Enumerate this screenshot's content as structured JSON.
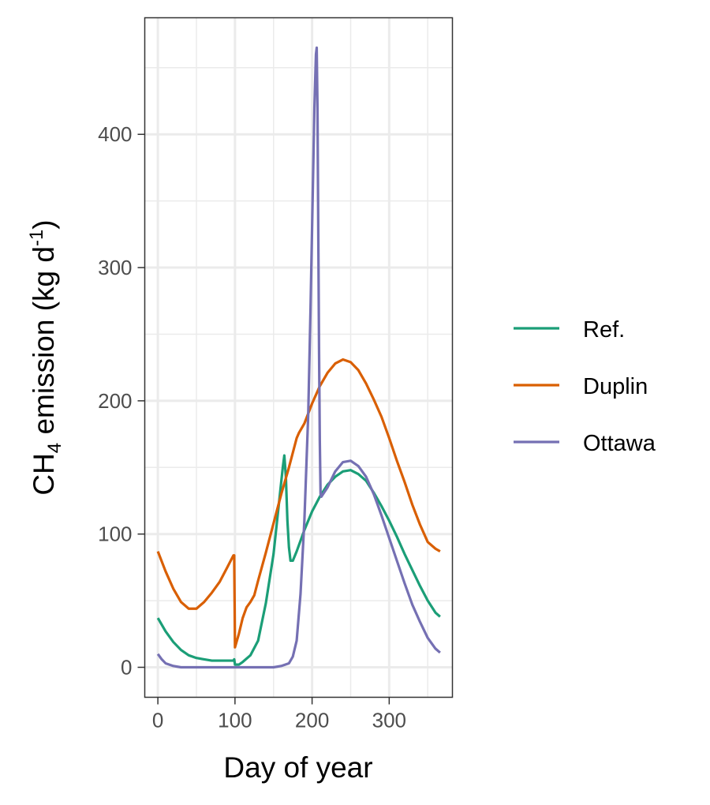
{
  "chart_data": {
    "type": "line",
    "xlabel": "Day of year",
    "ylabel": {
      "prefix": "CH",
      "sub": "4",
      "middle": " emission (kg d",
      "sup": "-1",
      "suffix": ")"
    },
    "xlim": [
      -17,
      382
    ],
    "ylim": [
      -22.5,
      487.5
    ],
    "x_ticks": [
      0,
      100,
      200,
      300
    ],
    "y_ticks": [
      0,
      100,
      200,
      300,
      400
    ],
    "grid": true,
    "legend_position": "right",
    "series": [
      {
        "name": "Ref.",
        "color": "#1b9e77",
        "points": [
          [
            0,
            37
          ],
          [
            10,
            27
          ],
          [
            20,
            19
          ],
          [
            30,
            13
          ],
          [
            40,
            9
          ],
          [
            50,
            7
          ],
          [
            60,
            6
          ],
          [
            70,
            5
          ],
          [
            80,
            5
          ],
          [
            90,
            5
          ],
          [
            98,
            5
          ],
          [
            99,
            6
          ],
          [
            100,
            2
          ],
          [
            105,
            2
          ],
          [
            110,
            4
          ],
          [
            120,
            9
          ],
          [
            130,
            20
          ],
          [
            140,
            48
          ],
          [
            150,
            85
          ],
          [
            157,
            123
          ],
          [
            162,
            150
          ],
          [
            164,
            159
          ],
          [
            166,
            143
          ],
          [
            168,
            110
          ],
          [
            170,
            90
          ],
          [
            172,
            80
          ],
          [
            175,
            80
          ],
          [
            180,
            87
          ],
          [
            190,
            103
          ],
          [
            200,
            117
          ],
          [
            210,
            128
          ],
          [
            220,
            137
          ],
          [
            230,
            143
          ],
          [
            240,
            147
          ],
          [
            250,
            148
          ],
          [
            260,
            145
          ],
          [
            270,
            140
          ],
          [
            280,
            131
          ],
          [
            290,
            121
          ],
          [
            300,
            110
          ],
          [
            310,
            98
          ],
          [
            320,
            85
          ],
          [
            330,
            73
          ],
          [
            340,
            61
          ],
          [
            350,
            50
          ],
          [
            360,
            41
          ],
          [
            366,
            38
          ]
        ]
      },
      {
        "name": "Duplin",
        "color": "#d95f02",
        "points": [
          [
            0,
            87
          ],
          [
            10,
            72
          ],
          [
            20,
            59
          ],
          [
            30,
            49
          ],
          [
            40,
            44
          ],
          [
            50,
            44
          ],
          [
            60,
            49
          ],
          [
            70,
            56
          ],
          [
            80,
            64
          ],
          [
            90,
            75
          ],
          [
            98,
            84
          ],
          [
            99,
            84
          ],
          [
            100,
            15
          ],
          [
            105,
            25
          ],
          [
            110,
            37
          ],
          [
            115,
            45
          ],
          [
            120,
            49
          ],
          [
            125,
            54
          ],
          [
            130,
            65
          ],
          [
            140,
            86
          ],
          [
            150,
            108
          ],
          [
            160,
            130
          ],
          [
            170,
            150
          ],
          [
            180,
            172
          ],
          [
            183,
            176
          ],
          [
            190,
            183
          ],
          [
            200,
            198
          ],
          [
            210,
            211
          ],
          [
            220,
            221
          ],
          [
            230,
            228
          ],
          [
            240,
            231
          ],
          [
            250,
            229
          ],
          [
            260,
            223
          ],
          [
            270,
            213
          ],
          [
            280,
            201
          ],
          [
            290,
            188
          ],
          [
            300,
            172
          ],
          [
            310,
            155
          ],
          [
            320,
            139
          ],
          [
            330,
            122
          ],
          [
            340,
            107
          ],
          [
            350,
            94
          ],
          [
            360,
            89
          ],
          [
            366,
            87
          ]
        ]
      },
      {
        "name": "Ottawa",
        "color": "#7570b3",
        "points": [
          [
            0,
            10
          ],
          [
            5,
            6
          ],
          [
            10,
            3
          ],
          [
            20,
            1
          ],
          [
            30,
            0
          ],
          [
            60,
            0
          ],
          [
            100,
            0
          ],
          [
            130,
            0
          ],
          [
            150,
            0
          ],
          [
            160,
            1
          ],
          [
            170,
            3
          ],
          [
            175,
            8
          ],
          [
            180,
            20
          ],
          [
            185,
            55
          ],
          [
            190,
            110
          ],
          [
            195,
            190
          ],
          [
            198,
            270
          ],
          [
            201,
            360
          ],
          [
            203,
            420
          ],
          [
            205,
            460
          ],
          [
            206,
            465
          ],
          [
            207,
            420
          ],
          [
            208,
            330
          ],
          [
            209,
            240
          ],
          [
            210,
            170
          ],
          [
            211,
            130
          ],
          [
            212,
            128
          ],
          [
            220,
            135
          ],
          [
            230,
            147
          ],
          [
            240,
            154
          ],
          [
            250,
            155
          ],
          [
            260,
            151
          ],
          [
            270,
            143
          ],
          [
            280,
            130
          ],
          [
            290,
            114
          ],
          [
            300,
            97
          ],
          [
            310,
            80
          ],
          [
            320,
            63
          ],
          [
            330,
            47
          ],
          [
            340,
            34
          ],
          [
            350,
            22
          ],
          [
            360,
            14
          ],
          [
            366,
            11
          ]
        ]
      }
    ]
  }
}
